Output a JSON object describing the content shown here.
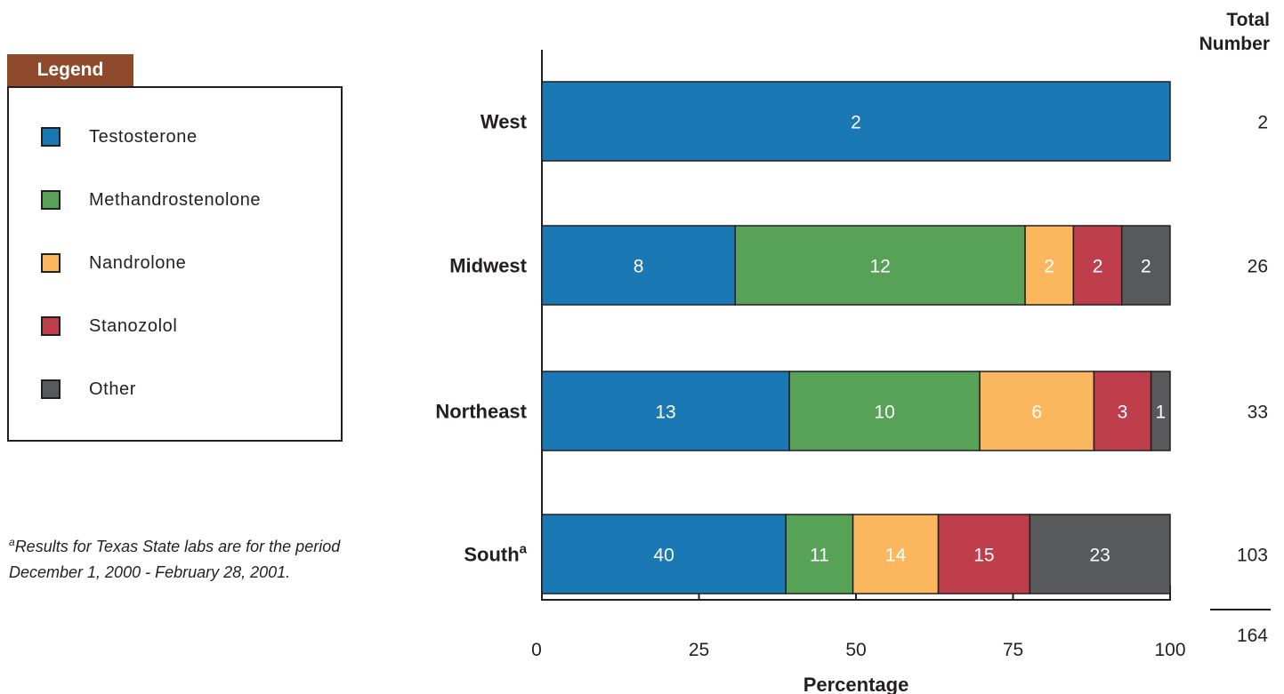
{
  "legend": {
    "title": "Legend",
    "items": [
      {
        "label": "Testosterone",
        "color": "#1a78b4"
      },
      {
        "label": "Methandrostenolone",
        "color": "#57a257"
      },
      {
        "label": "Nandrolone",
        "color": "#fbb75e"
      },
      {
        "label": "Stanozolol",
        "color": "#be3e4b"
      },
      {
        "label": "Other",
        "color": "#58595b"
      }
    ]
  },
  "footnote": {
    "marker": "a",
    "line1": "Results for Texas State labs are for the period",
    "line2": "December 1, 2000 - February 28, 2001."
  },
  "chart_data": {
    "type": "bar",
    "orientation": "horizontal",
    "stacked": true,
    "categories": [
      {
        "label": "West",
        "superscript": ""
      },
      {
        "label": "Midwest",
        "superscript": ""
      },
      {
        "label": "Northeast",
        "superscript": ""
      },
      {
        "label": "South",
        "superscript": "a"
      }
    ],
    "series": [
      {
        "name": "Testosterone",
        "values": [
          2,
          8,
          13,
          40
        ],
        "color": "#1a78b4"
      },
      {
        "name": "Methandrostenolone",
        "values": [
          0,
          12,
          10,
          11
        ],
        "color": "#57a257"
      },
      {
        "name": "Nandrolone",
        "values": [
          0,
          2,
          6,
          14
        ],
        "color": "#fbb75e"
      },
      {
        "name": "Stanozolol",
        "values": [
          0,
          2,
          3,
          15
        ],
        "color": "#be3e4b"
      },
      {
        "name": "Other",
        "values": [
          0,
          2,
          1,
          23
        ],
        "color": "#58595b"
      }
    ],
    "totals": [
      2,
      26,
      33,
      103
    ],
    "totals_header": [
      "Total",
      "Number"
    ],
    "grand_total": 164,
    "xlabel": "Percentage",
    "xlim": [
      0,
      100
    ],
    "xticks": [
      0,
      25,
      50,
      75,
      100
    ],
    "grid": false,
    "legend_position": "left"
  }
}
